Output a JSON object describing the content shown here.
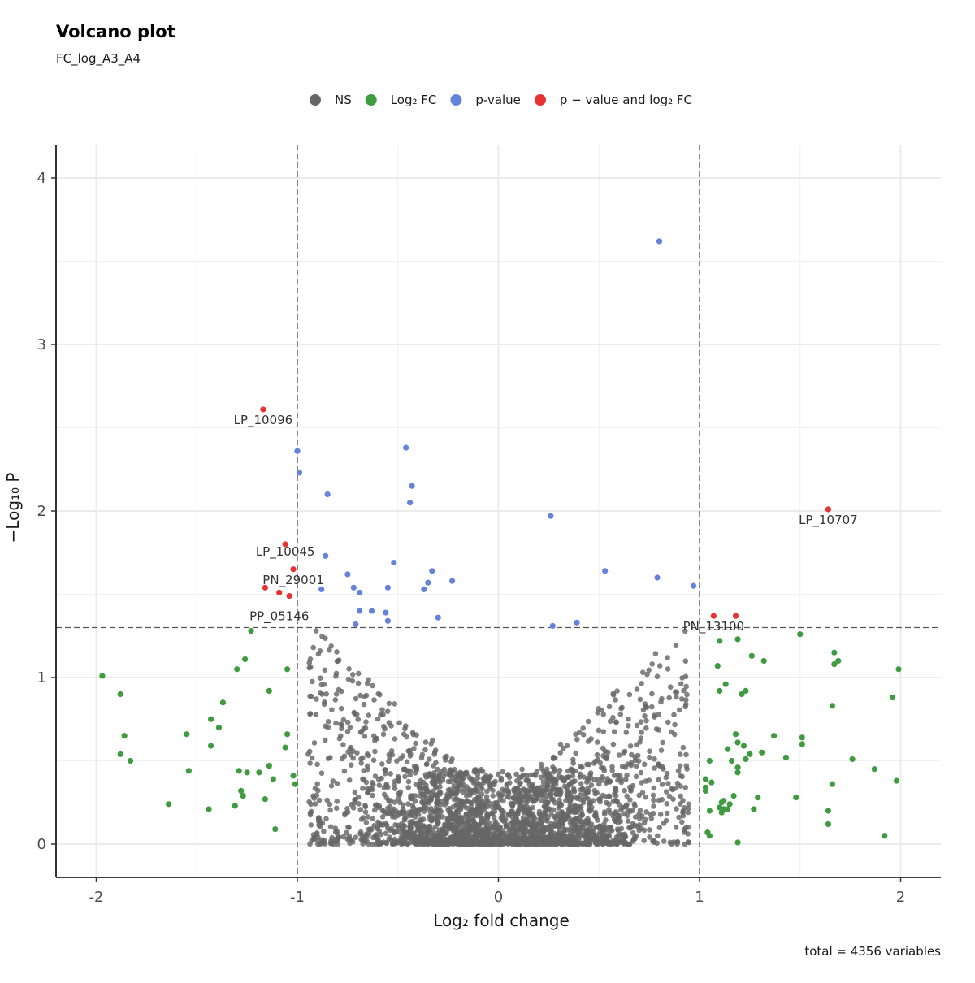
{
  "title": "Volcano plot",
  "subtitle": "FC_log_A3_A4",
  "caption": "total = 4356 variables",
  "legend": {
    "position": "top",
    "items": [
      {
        "key": "NS",
        "label": "NS",
        "color": "#666666"
      },
      {
        "key": "FC",
        "label": "Log₂ FC",
        "color": "#3f9b3f"
      },
      {
        "key": "P",
        "label": "p-value",
        "color": "#6583dc"
      },
      {
        "key": "FCP",
        "label": "p − value and log₂ FC",
        "color": "#e63232"
      }
    ]
  },
  "chart_data": {
    "type": "scatter",
    "xlabel": "Log₂ fold change",
    "ylabel": "−Log₁₀ P",
    "xlim": [
      -2.2,
      2.2
    ],
    "ylim": [
      -0.2,
      4.2
    ],
    "x_ticks": [
      -2,
      -1,
      0,
      1,
      2
    ],
    "y_ticks": [
      0,
      1,
      2,
      3,
      4
    ],
    "x_tick_labels": [
      "-2",
      "-1",
      "0",
      "1",
      "2"
    ],
    "y_tick_labels": [
      "0",
      "1",
      "2",
      "3",
      "4"
    ],
    "grid": true,
    "cutoffs": {
      "log2fc": [
        -1,
        1
      ],
      "neg_log10_p": 1.3
    },
    "total_points": 4356,
    "ns_cloud_note_color": "#4d4d4d",
    "series": [
      {
        "key": "FCP",
        "color": "#e63232",
        "points": [
          {
            "x": -1.17,
            "y": 2.61
          },
          {
            "x": 1.64,
            "y": 2.01
          },
          {
            "x": -1.06,
            "y": 1.8
          },
          {
            "x": -1.02,
            "y": 1.65
          },
          {
            "x": -1.16,
            "y": 1.54
          },
          {
            "x": -1.09,
            "y": 1.51
          },
          {
            "x": -1.04,
            "y": 1.49
          },
          {
            "x": 1.07,
            "y": 1.37
          },
          {
            "x": 1.18,
            "y": 1.37
          }
        ]
      },
      {
        "key": "P",
        "color": "#6583dc",
        "points": [
          {
            "x": 0.8,
            "y": 3.62
          },
          {
            "x": -0.46,
            "y": 2.38
          },
          {
            "x": -1.0,
            "y": 2.36
          },
          {
            "x": -0.99,
            "y": 2.23
          },
          {
            "x": -0.43,
            "y": 2.15
          },
          {
            "x": -0.85,
            "y": 2.1
          },
          {
            "x": -0.44,
            "y": 2.05
          },
          {
            "x": 0.26,
            "y": 1.97
          },
          {
            "x": -0.86,
            "y": 1.73
          },
          {
            "x": -0.52,
            "y": 1.69
          },
          {
            "x": -0.33,
            "y": 1.64
          },
          {
            "x": 0.53,
            "y": 1.64
          },
          {
            "x": -0.75,
            "y": 1.62
          },
          {
            "x": 0.79,
            "y": 1.6
          },
          {
            "x": -0.23,
            "y": 1.58
          },
          {
            "x": -0.35,
            "y": 1.57
          },
          {
            "x": 0.97,
            "y": 1.55
          },
          {
            "x": -0.72,
            "y": 1.54
          },
          {
            "x": -0.55,
            "y": 1.54
          },
          {
            "x": -0.88,
            "y": 1.53
          },
          {
            "x": -0.37,
            "y": 1.53
          },
          {
            "x": -0.69,
            "y": 1.51
          },
          {
            "x": -0.63,
            "y": 1.4
          },
          {
            "x": -0.69,
            "y": 1.4
          },
          {
            "x": -0.56,
            "y": 1.39
          },
          {
            "x": -0.3,
            "y": 1.36
          },
          {
            "x": -0.55,
            "y": 1.34
          },
          {
            "x": 0.39,
            "y": 1.33
          },
          {
            "x": -0.71,
            "y": 1.32
          },
          {
            "x": 0.27,
            "y": 1.31
          }
        ]
      },
      {
        "key": "FC",
        "color": "#3f9b3f",
        "points": [
          {
            "x": -1.23,
            "y": 1.28
          },
          {
            "x": -1.26,
            "y": 1.11
          },
          {
            "x": -1.3,
            "y": 1.05
          },
          {
            "x": -1.05,
            "y": 1.05
          },
          {
            "x": -1.97,
            "y": 1.01
          },
          {
            "x": -1.14,
            "y": 0.92
          },
          {
            "x": -1.88,
            "y": 0.9
          },
          {
            "x": -1.37,
            "y": 0.85
          },
          {
            "x": -1.43,
            "y": 0.75
          },
          {
            "x": -1.39,
            "y": 0.7
          },
          {
            "x": -1.55,
            "y": 0.66
          },
          {
            "x": -1.05,
            "y": 0.66
          },
          {
            "x": -1.86,
            "y": 0.65
          },
          {
            "x": -1.43,
            "y": 0.59
          },
          {
            "x": -1.06,
            "y": 0.58
          },
          {
            "x": -1.88,
            "y": 0.54
          },
          {
            "x": -1.83,
            "y": 0.5
          },
          {
            "x": -1.14,
            "y": 0.47
          },
          {
            "x": -1.29,
            "y": 0.44
          },
          {
            "x": -1.54,
            "y": 0.44
          },
          {
            "x": -1.19,
            "y": 0.43
          },
          {
            "x": -1.25,
            "y": 0.43
          },
          {
            "x": -1.02,
            "y": 0.41
          },
          {
            "x": -1.12,
            "y": 0.39
          },
          {
            "x": -1.01,
            "y": 0.36
          },
          {
            "x": -1.28,
            "y": 0.32
          },
          {
            "x": -1.27,
            "y": 0.29
          },
          {
            "x": -1.16,
            "y": 0.27
          },
          {
            "x": -1.64,
            "y": 0.24
          },
          {
            "x": -1.31,
            "y": 0.23
          },
          {
            "x": -1.44,
            "y": 0.21
          },
          {
            "x": -1.11,
            "y": 0.09
          },
          {
            "x": 1.5,
            "y": 1.26
          },
          {
            "x": 1.1,
            "y": 1.22
          },
          {
            "x": 1.19,
            "y": 1.23
          },
          {
            "x": 1.67,
            "y": 1.15
          },
          {
            "x": 1.26,
            "y": 1.13
          },
          {
            "x": 1.69,
            "y": 1.1
          },
          {
            "x": 1.32,
            "y": 1.1
          },
          {
            "x": 1.67,
            "y": 1.08
          },
          {
            "x": 1.09,
            "y": 1.07
          },
          {
            "x": 1.99,
            "y": 1.05
          },
          {
            "x": 1.13,
            "y": 0.96
          },
          {
            "x": 1.1,
            "y": 0.92
          },
          {
            "x": 1.23,
            "y": 0.92
          },
          {
            "x": 1.21,
            "y": 0.9
          },
          {
            "x": 1.96,
            "y": 0.88
          },
          {
            "x": 1.66,
            "y": 0.83
          },
          {
            "x": 1.18,
            "y": 0.66
          },
          {
            "x": 1.37,
            "y": 0.65
          },
          {
            "x": 1.51,
            "y": 0.64
          },
          {
            "x": 1.19,
            "y": 0.61
          },
          {
            "x": 1.51,
            "y": 0.6
          },
          {
            "x": 1.22,
            "y": 0.59
          },
          {
            "x": 1.14,
            "y": 0.57
          },
          {
            "x": 1.31,
            "y": 0.55
          },
          {
            "x": 1.25,
            "y": 0.54
          },
          {
            "x": 1.43,
            "y": 0.52
          },
          {
            "x": 1.23,
            "y": 0.51
          },
          {
            "x": 1.76,
            "y": 0.51
          },
          {
            "x": 1.05,
            "y": 0.5
          },
          {
            "x": 1.16,
            "y": 0.5
          },
          {
            "x": 1.19,
            "y": 0.46
          },
          {
            "x": 1.87,
            "y": 0.45
          },
          {
            "x": 1.19,
            "y": 0.43
          },
          {
            "x": 1.03,
            "y": 0.39
          },
          {
            "x": 1.98,
            "y": 0.38
          },
          {
            "x": 1.06,
            "y": 0.37
          },
          {
            "x": 1.66,
            "y": 0.36
          },
          {
            "x": 1.03,
            "y": 0.34
          },
          {
            "x": 1.03,
            "y": 0.32
          },
          {
            "x": 1.17,
            "y": 0.29
          },
          {
            "x": 1.48,
            "y": 0.28
          },
          {
            "x": 1.29,
            "y": 0.28
          },
          {
            "x": 1.12,
            "y": 0.26
          },
          {
            "x": 1.11,
            "y": 0.25
          },
          {
            "x": 1.15,
            "y": 0.24
          },
          {
            "x": 1.1,
            "y": 0.22
          },
          {
            "x": 1.12,
            "y": 0.21
          },
          {
            "x": 1.14,
            "y": 0.21
          },
          {
            "x": 1.27,
            "y": 0.21
          },
          {
            "x": 1.64,
            "y": 0.2
          },
          {
            "x": 1.05,
            "y": 0.2
          },
          {
            "x": 1.11,
            "y": 0.19
          },
          {
            "x": 1.64,
            "y": 0.12
          },
          {
            "x": 1.04,
            "y": 0.07
          },
          {
            "x": 1.05,
            "y": 0.05
          },
          {
            "x": 1.92,
            "y": 0.05
          },
          {
            "x": 1.19,
            "y": 0.01
          }
        ]
      }
    ],
    "labels": [
      {
        "text": "LP_10096",
        "x": -1.17,
        "y": 2.61
      },
      {
        "text": "LP_10707",
        "x": 1.64,
        "y": 2.01
      },
      {
        "text": "LP_10045",
        "x": -1.06,
        "y": 1.8
      },
      {
        "text": "PN_29001",
        "x": -1.02,
        "y": 1.65
      },
      {
        "text": "PP_05146",
        "x": -1.09,
        "y": 1.51
      },
      {
        "text": "PN_13100",
        "x": 1.07,
        "y": 1.37
      }
    ]
  }
}
